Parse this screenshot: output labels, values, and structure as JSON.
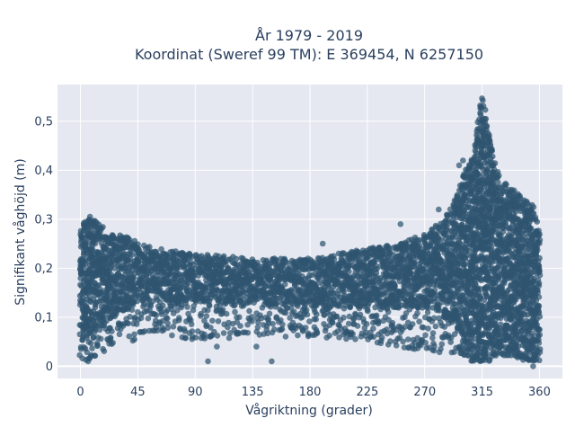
{
  "chart_data": {
    "type": "scatter",
    "title_line1": "År 1979 - 2019",
    "title_line2": "Koordinat (Sweref 99 TM): E 369454, N 6257150",
    "xlabel": "Vågriktning (grader)",
    "ylabel": "Signifikant våghöjd (m)",
    "xlim": [
      -18,
      378
    ],
    "ylim": [
      -0.025,
      0.575
    ],
    "x_ticks": [
      0,
      45,
      90,
      135,
      180,
      225,
      270,
      315,
      360
    ],
    "x_tick_labels": [
      "0",
      "45",
      "90",
      "135",
      "180",
      "225",
      "270",
      "315",
      "360"
    ],
    "y_ticks": [
      0,
      0.1,
      0.2,
      0.3,
      0.4,
      0.5
    ],
    "y_tick_labels": [
      "0",
      "0,1",
      "0,2",
      "0,3",
      "0,4",
      "0,5"
    ],
    "grid": true,
    "colors": {
      "marker": "#2f5570",
      "plot_bg": "#e5e8f0",
      "grid": "#ffffff",
      "text": "#2a3f5f"
    },
    "envelope": {
      "x": [
        0,
        2,
        5,
        10,
        15,
        20,
        25,
        30,
        40,
        45,
        60,
        90,
        135,
        180,
        225,
        250,
        270,
        285,
        295,
        300,
        305,
        310,
        313,
        315,
        318,
        320,
        325,
        330,
        340,
        350,
        355,
        360
      ],
      "upper": [
        0.28,
        0.3,
        0.31,
        0.3,
        0.29,
        0.28,
        0.28,
        0.27,
        0.26,
        0.25,
        0.24,
        0.23,
        0.22,
        0.22,
        0.24,
        0.25,
        0.27,
        0.3,
        0.35,
        0.39,
        0.42,
        0.46,
        0.52,
        0.55,
        0.52,
        0.48,
        0.42,
        0.38,
        0.36,
        0.34,
        0.33,
        0.28
      ],
      "lower": [
        0.01,
        0.01,
        0.01,
        0.02,
        0.02,
        0.03,
        0.04,
        0.04,
        0.05,
        0.06,
        0.07,
        0.05,
        0.06,
        0.06,
        0.05,
        0.04,
        0.03,
        0.02,
        0.02,
        0.02,
        0.01,
        0.01,
        0.01,
        0.01,
        0.01,
        0.01,
        0.02,
        0.02,
        0.02,
        0.01,
        0.01,
        0.01
      ],
      "dense_lower": [
        0.07,
        0.06,
        0.05,
        0.06,
        0.08,
        0.09,
        0.1,
        0.11,
        0.12,
        0.13,
        0.13,
        0.13,
        0.13,
        0.12,
        0.12,
        0.12,
        0.12,
        0.1,
        0.08,
        0.06,
        0.04,
        0.03,
        0.02,
        0.02,
        0.02,
        0.03,
        0.04,
        0.04,
        0.04,
        0.03,
        0.03,
        0.03
      ]
    },
    "outliers": [
      {
        "x": 6,
        "y": 0.01
      },
      {
        "x": 100,
        "y": 0.01
      },
      {
        "x": 150,
        "y": 0.01
      },
      {
        "x": 138,
        "y": 0.04
      },
      {
        "x": 107,
        "y": 0.04
      },
      {
        "x": 88,
        "y": 0.06
      },
      {
        "x": 247,
        "y": 0.05
      },
      {
        "x": 281,
        "y": 0.32
      },
      {
        "x": 190,
        "y": 0.25
      },
      {
        "x": 297,
        "y": 0.41
      },
      {
        "x": 251,
        "y": 0.29
      },
      {
        "x": 355,
        "y": 0.0
      },
      {
        "x": 300,
        "y": 0.42
      },
      {
        "x": 212,
        "y": 0.06
      },
      {
        "x": 230,
        "y": 0.06
      }
    ]
  }
}
